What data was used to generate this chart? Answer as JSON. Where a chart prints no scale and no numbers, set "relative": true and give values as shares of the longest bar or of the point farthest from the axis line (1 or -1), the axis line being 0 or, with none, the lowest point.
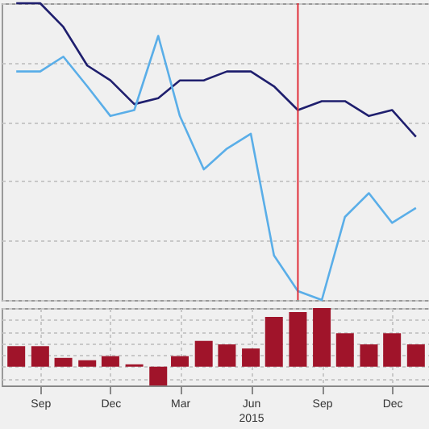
{
  "chart_data": [
    {
      "type": "line",
      "relative": true,
      "x": [
        "2014-08",
        "2014-09",
        "2014-10",
        "2014-11",
        "2014-12",
        "2015-01",
        "2015-02",
        "2015-03",
        "2015-04",
        "2015-05",
        "2015-06",
        "2015-07",
        "2015-08",
        "2015-09",
        "2015-10",
        "2015-11",
        "2015-12",
        "2016-01"
      ],
      "xlim": [
        "2014-07-13",
        "2016-01-20"
      ],
      "xticks": [
        {
          "value": "2014-09",
          "label": null
        },
        {
          "value": "2014-12",
          "label": null
        },
        {
          "value": "2015-03",
          "label": null
        },
        {
          "value": "2015-06",
          "label": null
        },
        {
          "value": "2015-09",
          "label": null
        },
        {
          "value": "2015-12",
          "label": null
        }
      ],
      "tick_labels": false,
      "grid": true,
      "legend": false,
      "marker": "none",
      "line_style": "solid",
      "series": [
        {
          "color": "#1f1f6e",
          "values": [
            1.0,
            1.0,
            0.92,
            0.79,
            0.74,
            0.66,
            0.68,
            0.74,
            0.74,
            0.77,
            0.77,
            0.72,
            0.64,
            0.67,
            0.67,
            0.62,
            0.64,
            0.55
          ]
        },
        {
          "color": "#5aaee8",
          "values": [
            0.77,
            0.77,
            0.82,
            0.72,
            0.62,
            0.64,
            0.89,
            0.62,
            0.44,
            0.51,
            0.56,
            0.15,
            0.03,
            0,
            0.28,
            0.36,
            0.26,
            0.31
          ]
        }
      ],
      "ref_lines": [
        {
          "axis": "x",
          "value": "2015-08",
          "color": "#e0303a"
        }
      ]
    },
    {
      "type": "bar",
      "relative": true,
      "x": [
        "2014-08",
        "2014-09",
        "2014-10",
        "2014-11",
        "2014-12",
        "2015-01",
        "2015-02",
        "2015-03",
        "2015-04",
        "2015-05",
        "2015-06",
        "2015-07",
        "2015-08",
        "2015-09",
        "2015-10",
        "2015-11",
        "2015-12",
        "2016-01"
      ],
      "xlim": [
        "2014-07-13",
        "2016-01-20"
      ],
      "xticks": [
        {
          "value": "2014-09",
          "label": "Sep"
        },
        {
          "value": "2014-12",
          "label": "Dec"
        },
        {
          "value": "2015-03",
          "label": "Mar"
        },
        {
          "value": "2015-06",
          "label": "Jun\n2015"
        },
        {
          "value": "2015-09",
          "label": "Sep"
        },
        {
          "value": "2015-12",
          "label": "Dec"
        }
      ],
      "tick_labels": "x",
      "grid": true,
      "legend": false,
      "series": [
        {
          "color": "#a0142a",
          "values": [
            0.35,
            0.35,
            0.15,
            0.11,
            0.18,
            0.04,
            -0.32,
            0.18,
            0.44,
            0.38,
            0.31,
            0.85,
            0.93,
            1,
            0.57,
            0.38,
            0.57,
            0.38
          ]
        }
      ]
    }
  ]
}
